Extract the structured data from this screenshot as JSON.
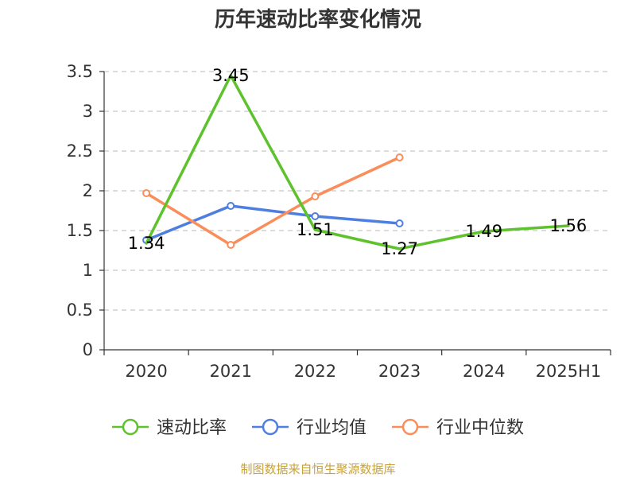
{
  "source_note": "制图数据来自恒生聚源数据库",
  "source_color": "#c8a23a",
  "chart_data": {
    "type": "line",
    "title": "历年速动比率变化情况",
    "categories": [
      "2020",
      "2021",
      "2022",
      "2023",
      "2024",
      "2025H1"
    ],
    "ylim": [
      0,
      3.5
    ],
    "yticks": [
      "0",
      "0.5",
      "1",
      "1.5",
      "2",
      "2.5",
      "3",
      "3.5"
    ],
    "grid": true,
    "legend_position": "bottom",
    "series": [
      {
        "name": "速动比率",
        "color": "#5dc22b",
        "values": [
          1.34,
          3.45,
          1.51,
          1.27,
          1.49,
          1.56
        ],
        "labels": [
          "1.34",
          "3.45",
          "1.51",
          "1.27",
          "1.49",
          "1.56"
        ],
        "show_markers": false
      },
      {
        "name": "行业均值",
        "color": "#4e7fe0",
        "values": [
          1.38,
          1.81,
          1.68,
          1.59,
          null,
          null
        ],
        "show_markers": true
      },
      {
        "name": "行业中位数",
        "color": "#fb8d5a",
        "values": [
          1.97,
          1.32,
          1.93,
          2.42,
          null,
          null
        ],
        "show_markers": true
      }
    ]
  }
}
